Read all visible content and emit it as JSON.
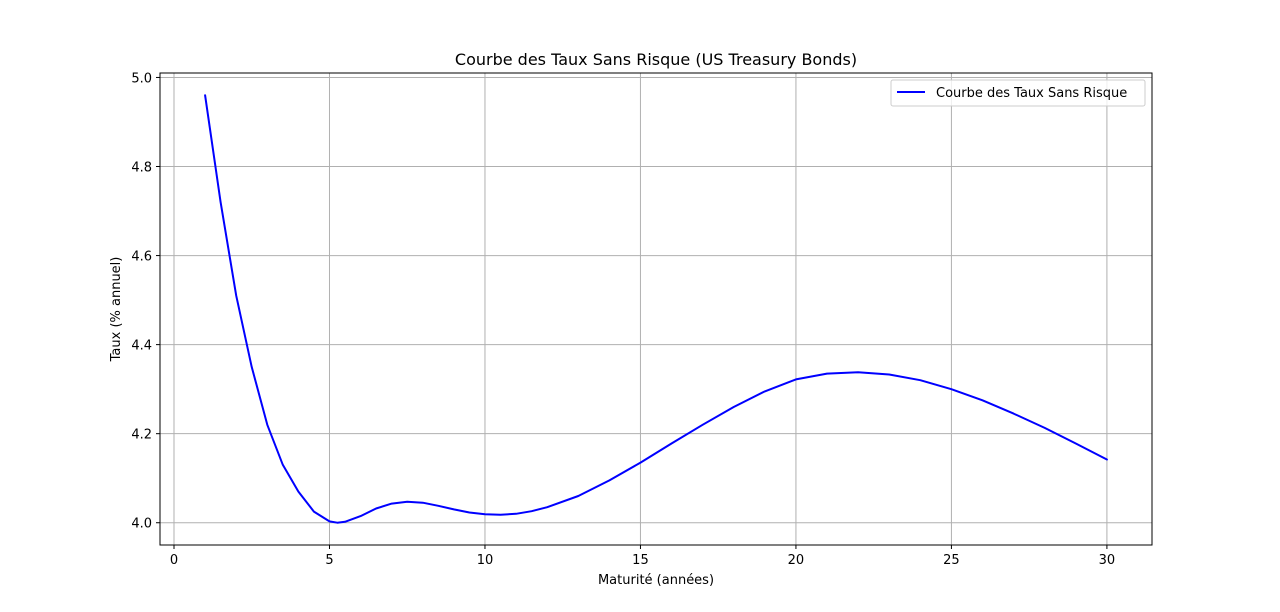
{
  "chart_data": {
    "type": "line",
    "title": "Courbe des Taux Sans Risque (US Treasury Bonds)",
    "xlabel": "Maturité (années)",
    "ylabel": "Taux (% annuel)",
    "xlim": [
      -0.45,
      31.45
    ],
    "ylim": [
      3.95,
      5.01
    ],
    "xticks": [
      0,
      5,
      10,
      15,
      20,
      25,
      30
    ],
    "xtick_labels": [
      "0",
      "5",
      "10",
      "15",
      "20",
      "25",
      "30"
    ],
    "yticks": [
      4.0,
      4.2,
      4.4,
      4.6,
      4.8,
      5.0
    ],
    "ytick_labels": [
      "4.0",
      "4.2",
      "4.4",
      "4.6",
      "4.8",
      "5.0"
    ],
    "grid": true,
    "legend_position": "top-right",
    "series": [
      {
        "name": "Courbe des Taux Sans Risque",
        "color": "#0000ff",
        "x": [
          1,
          1.5,
          2,
          2.5,
          3,
          3.5,
          4,
          4.5,
          5,
          5.25,
          5.5,
          6,
          6.5,
          7,
          7.5,
          8,
          8.5,
          9,
          9.5,
          10,
          10.5,
          11,
          11.5,
          12,
          13,
          14,
          15,
          16,
          17,
          18,
          19,
          20,
          21,
          22,
          23,
          24,
          25,
          26,
          27,
          28,
          29,
          30
        ],
        "y": [
          4.96,
          4.72,
          4.51,
          4.35,
          4.22,
          4.13,
          4.07,
          4.025,
          4.003,
          4.0,
          4.002,
          4.015,
          4.032,
          4.043,
          4.047,
          4.045,
          4.038,
          4.03,
          4.023,
          4.019,
          4.018,
          4.02,
          4.026,
          4.035,
          4.06,
          4.095,
          4.135,
          4.178,
          4.22,
          4.26,
          4.295,
          4.322,
          4.335,
          4.338,
          4.333,
          4.32,
          4.3,
          4.275,
          4.245,
          4.213,
          4.178,
          4.142
        ]
      }
    ]
  }
}
